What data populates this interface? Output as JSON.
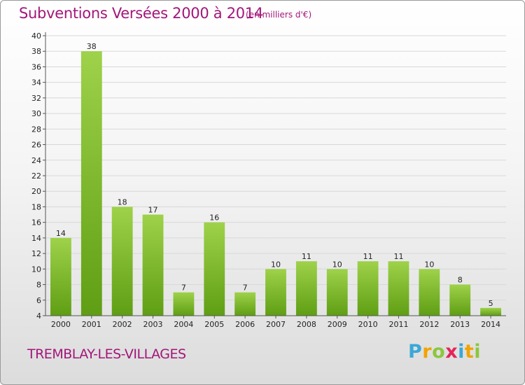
{
  "header": {
    "title": "Subventions Versées 2000 à 2014",
    "unit": "(en milliers d'€)"
  },
  "footer": {
    "commune": "TREMBLAY-LES-VILLAGES",
    "logo_letters": [
      "P",
      "r",
      "o",
      "x",
      "i",
      "t",
      "i"
    ],
    "logo_colors": [
      "#3aa7d8",
      "#f0a400",
      "#8cc63f",
      "#e4245a",
      "#3aa7d8",
      "#f0a400",
      "#8cc63f"
    ]
  },
  "chart_data": {
    "type": "bar",
    "title": "Subventions Versées 2000 à 2014",
    "subtitle": "(en milliers d'€)",
    "categories": [
      "2000",
      "2001",
      "2002",
      "2003",
      "2004",
      "2005",
      "2006",
      "2007",
      "2008",
      "2009",
      "2010",
      "2011",
      "2012",
      "2013",
      "2014"
    ],
    "values": [
      14,
      38,
      18,
      17,
      7,
      16,
      7,
      10,
      11,
      10,
      11,
      11,
      10,
      8,
      5
    ],
    "ylim": [
      4,
      40
    ],
    "yticks": [
      4,
      6,
      8,
      10,
      12,
      14,
      16,
      18,
      20,
      22,
      24,
      26,
      28,
      30,
      32,
      34,
      36,
      38,
      40
    ],
    "grid": true,
    "bar_color_light": "#9ed24a",
    "bar_color_dark": "#5f9e14"
  }
}
